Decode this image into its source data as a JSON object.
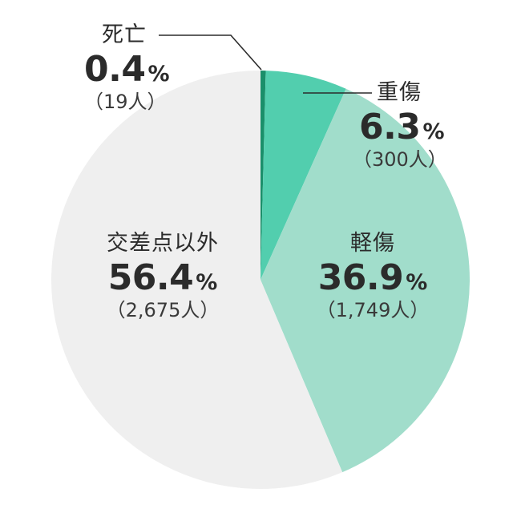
{
  "chart_data": {
    "type": "pie",
    "start_angle_deg": 0,
    "direction": "clockwise",
    "slices": [
      {
        "name": "死亡",
        "value": 0.4,
        "count": "（19人）",
        "color": "#1a8f6a"
      },
      {
        "name": "重傷",
        "value": 6.3,
        "count": "（300人）",
        "color": "#52ceae"
      },
      {
        "name": "軽傷",
        "value": 36.9,
        "count": "（1,749人）",
        "color": "#a1ddcb"
      },
      {
        "name": "交差点以外",
        "value": 56.4,
        "count": "（2,675人）",
        "color": "#efefef"
      }
    ],
    "unit": "%"
  }
}
